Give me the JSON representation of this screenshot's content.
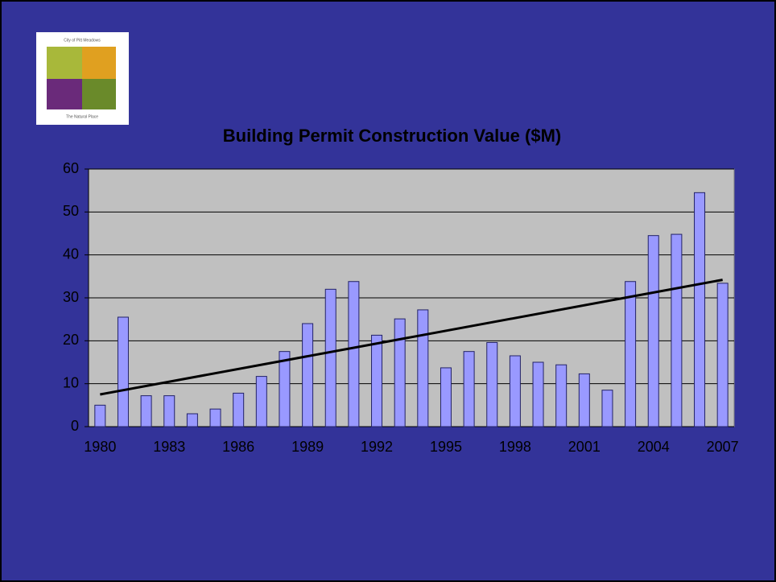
{
  "logo": {
    "top_text": "City of Pitt Meadows",
    "bottom_text": "The Natural Place"
  },
  "chart_data": {
    "type": "bar",
    "title": "Building Permit Construction Value ($M)",
    "categories": [
      "1980",
      null,
      null,
      "1983",
      null,
      null,
      "1986",
      null,
      null,
      "1989",
      null,
      null,
      "1992",
      null,
      null,
      "1995",
      null,
      null,
      "1998",
      null,
      null,
      "2001",
      null,
      null,
      "2004",
      null,
      null,
      "2007"
    ],
    "values": [
      5,
      25.5,
      7.2,
      7.2,
      3,
      4.1,
      7.8,
      11.7,
      17.5,
      24,
      32,
      33.8,
      21.3,
      25.1,
      27.2,
      13.7,
      17.5,
      19.6,
      16.5,
      15,
      14.4,
      12.3,
      8.5,
      33.8,
      44.5,
      44.8,
      54.5,
      33.4
    ],
    "color": "#9999ff",
    "trend": {
      "start": 7.5,
      "end": 34.2
    },
    "ylim": [
      0,
      60
    ],
    "yticks": [
      0,
      10,
      20,
      30,
      40,
      50,
      60
    ],
    "grid": true
  }
}
